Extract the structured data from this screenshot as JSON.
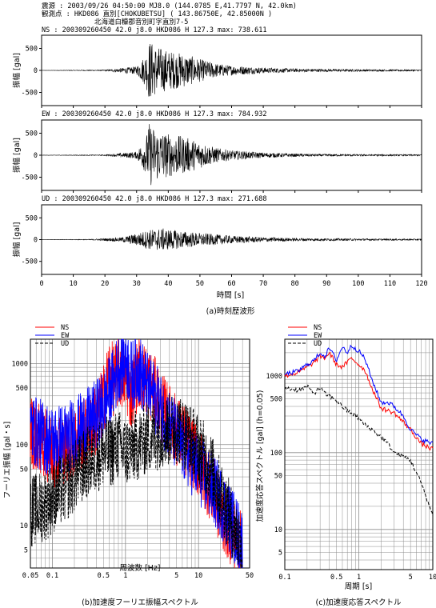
{
  "header": {
    "line1": "震源    : 2003/09/26 04:50:00  MJ8.0  (144.0785 E,41.7797 N,  42.0km)",
    "line2": "観測点  : HKD086 直別[CHOKUBETSU] ( 143.86750E, 42.85000N )",
    "line3": "北海道白糠郡音別町字直別7-5"
  },
  "chart_data": [
    {
      "type": "line",
      "id": "waveform-ns",
      "label": "NS : 200309260450   42.0 j8.0 HKD086 H 127.3 max: 738.611",
      "ylabel": "振幅 [gal]",
      "xlim": [
        0,
        120
      ],
      "ylim": [
        -800,
        800
      ],
      "yticks": [
        500,
        0,
        -500
      ],
      "max": 738.611,
      "envelope": {
        "t": [
          0,
          20,
          30,
          33,
          34,
          36,
          40,
          45,
          50,
          55,
          60,
          70,
          80,
          90,
          100,
          110,
          120
        ],
        "a": [
          2,
          12,
          90,
          380,
          700,
          560,
          450,
          380,
          260,
          160,
          110,
          65,
          40,
          30,
          25,
          20,
          18
        ]
      }
    },
    {
      "type": "line",
      "id": "waveform-ew",
      "label": "EW : 200309260450   42.0 j8.0 HKD086 H 127.3 max: 784.932",
      "ylabel": "振幅 [gal]",
      "xlim": [
        0,
        120
      ],
      "ylim": [
        -800,
        800
      ],
      "yticks": [
        500,
        0,
        -500
      ],
      "max": 784.932,
      "envelope": {
        "t": [
          0,
          20,
          30,
          33,
          34,
          36,
          40,
          45,
          50,
          55,
          60,
          70,
          80,
          90,
          100,
          110,
          120
        ],
        "a": [
          2,
          10,
          80,
          420,
          740,
          600,
          500,
          420,
          300,
          170,
          110,
          60,
          35,
          25,
          20,
          18,
          15
        ]
      }
    },
    {
      "type": "line",
      "id": "waveform-ud",
      "label": "UD : 200309260450   42.0 j8.0 HKD086 H 127.3 max: 271.688",
      "ylabel": "振幅 [gal]",
      "xlabel": "時間 [s]",
      "xlim": [
        0,
        120
      ],
      "xticks": [
        0,
        10,
        20,
        30,
        40,
        50,
        60,
        70,
        80,
        90,
        100,
        110,
        120
      ],
      "ylim": [
        -800,
        800
      ],
      "yticks": [
        500,
        0,
        -500
      ],
      "max": 271.688,
      "envelope": {
        "t": [
          0,
          15,
          25,
          30,
          34,
          38,
          42,
          50,
          60,
          70,
          80,
          100,
          120
        ],
        "a": [
          2,
          8,
          50,
          140,
          230,
          260,
          220,
          150,
          90,
          55,
          35,
          22,
          15
        ]
      }
    },
    {
      "type": "line",
      "id": "fourier-spectrum",
      "xlabel": "周波数 [Hz]",
      "ylabel": "フーリエ振幅 [gal・s]",
      "xscale": "log",
      "yscale": "log",
      "xlim": [
        0.05,
        50
      ],
      "ylim": [
        3,
        2000
      ],
      "xticks": [
        0.05,
        0.1,
        0.5,
        1,
        5,
        10,
        50
      ],
      "yticks": [
        5,
        10,
        50,
        100,
        500,
        1000
      ],
      "legend": "top-left",
      "series": [
        {
          "name": "NS",
          "color": "#ff0000",
          "style": "solid",
          "x": [
            0.05,
            0.08,
            0.1,
            0.15,
            0.2,
            0.3,
            0.4,
            0.5,
            0.6,
            0.7,
            0.8,
            1.0,
            1.2,
            1.5,
            2,
            2.5,
            3,
            4,
            5,
            7,
            10,
            15,
            20,
            30,
            40
          ],
          "y": [
            150,
            100,
            80,
            90,
            110,
            150,
            200,
            350,
            800,
            600,
            800,
            700,
            400,
            800,
            600,
            450,
            300,
            200,
            150,
            100,
            60,
            30,
            15,
            8,
            5
          ]
        },
        {
          "name": "EW",
          "color": "#0000ff",
          "style": "solid",
          "x": [
            0.05,
            0.08,
            0.1,
            0.15,
            0.2,
            0.3,
            0.4,
            0.5,
            0.6,
            0.7,
            0.8,
            1.0,
            1.2,
            1.5,
            2,
            2.5,
            3,
            4,
            5,
            7,
            10,
            15,
            20,
            30,
            40
          ],
          "y": [
            160,
            120,
            110,
            120,
            140,
            180,
            230,
            300,
            450,
            600,
            900,
            1200,
            700,
            900,
            500,
            400,
            280,
            180,
            120,
            80,
            50,
            30,
            20,
            10,
            6
          ]
        },
        {
          "name": "UD",
          "color": "#000000",
          "style": "dashed",
          "x": [
            0.05,
            0.08,
            0.1,
            0.15,
            0.2,
            0.3,
            0.4,
            0.5,
            0.6,
            0.7,
            0.8,
            1.0,
            1.2,
            1.5,
            2,
            2.5,
            3,
            4,
            5,
            7,
            10,
            15,
            20,
            30,
            40
          ],
          "y": [
            15,
            18,
            22,
            30,
            40,
            60,
            70,
            80,
            80,
            90,
            100,
            80,
            90,
            100,
            120,
            130,
            140,
            150,
            160,
            130,
            90,
            50,
            25,
            10,
            5
          ]
        }
      ]
    },
    {
      "type": "line",
      "id": "response-spectrum",
      "xlabel": "周期 [s]",
      "ylabel": "加速度応答スペクトル [gal]  (h=0.05)",
      "xscale": "log",
      "yscale": "log",
      "xlim": [
        0.1,
        10
      ],
      "ylim": [
        3,
        3000
      ],
      "xticks": [
        0.1,
        0.5,
        1,
        5,
        10
      ],
      "yticks": [
        5,
        10,
        50,
        100,
        500,
        1000
      ],
      "legend": "top-left",
      "series": [
        {
          "name": "NS",
          "color": "#ff0000",
          "style": "solid",
          "x": [
            0.1,
            0.15,
            0.2,
            0.25,
            0.3,
            0.35,
            0.4,
            0.5,
            0.6,
            0.7,
            0.8,
            1.0,
            1.2,
            1.5,
            2,
            2.5,
            3,
            4,
            5,
            7,
            10
          ],
          "y": [
            1000,
            1100,
            1300,
            1500,
            1800,
            1700,
            2000,
            1400,
            1300,
            1500,
            1700,
            1400,
            1200,
            700,
            380,
            350,
            330,
            250,
            200,
            130,
            110
          ]
        },
        {
          "name": "EW",
          "color": "#0000ff",
          "style": "solid",
          "x": [
            0.1,
            0.15,
            0.2,
            0.25,
            0.3,
            0.35,
            0.4,
            0.5,
            0.6,
            0.7,
            0.8,
            1.0,
            1.2,
            1.5,
            2,
            2.5,
            3,
            4,
            5,
            7,
            10
          ],
          "y": [
            1050,
            1150,
            1400,
            1600,
            2000,
            1800,
            2300,
            1600,
            2400,
            2000,
            2500,
            2100,
            1700,
            900,
            450,
            450,
            400,
            300,
            200,
            150,
            130
          ]
        },
        {
          "name": "UD",
          "color": "#000000",
          "style": "dashed",
          "x": [
            0.1,
            0.15,
            0.2,
            0.25,
            0.3,
            0.35,
            0.4,
            0.5,
            0.6,
            0.7,
            0.8,
            1.0,
            1.2,
            1.5,
            2,
            2.5,
            3,
            4,
            5,
            7,
            10
          ],
          "y": [
            700,
            650,
            720,
            600,
            700,
            580,
            550,
            480,
            400,
            350,
            330,
            280,
            230,
            200,
            160,
            130,
            100,
            90,
            80,
            40,
            15
          ]
        }
      ]
    }
  ],
  "captions": {
    "a": "(a)時刻歴波形",
    "b": "(b)加速度フーリエ振幅スペクトル",
    "c": "(c)加速度応答スペクトル"
  }
}
